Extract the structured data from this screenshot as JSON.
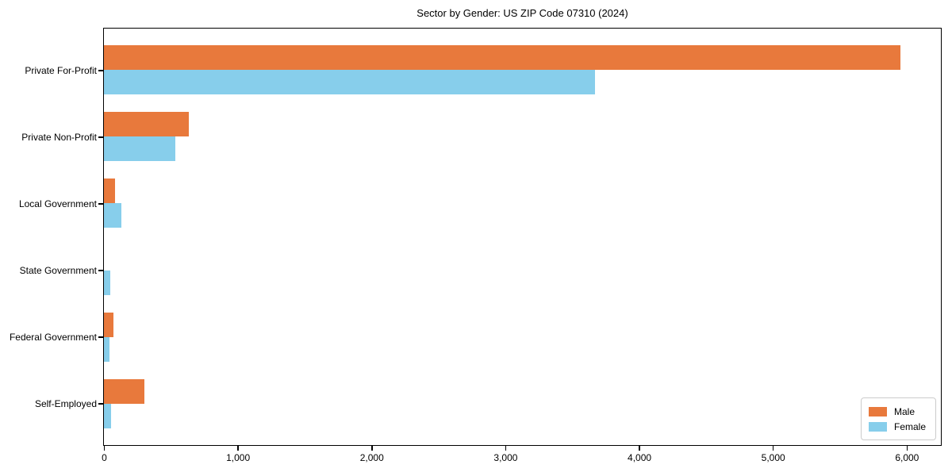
{
  "chart_data": {
    "type": "bar",
    "orientation": "horizontal",
    "title": "Sector by Gender: US ZIP Code 07310 (2024)",
    "categories": [
      "Private For-Profit",
      "Private Non-Profit",
      "Local Government",
      "State Government",
      "Federal Government",
      "Self-Employed"
    ],
    "series": [
      {
        "name": "Male",
        "color": "#e8793c",
        "values": [
          5950,
          635,
          85,
          0,
          70,
          305
        ]
      },
      {
        "name": "Female",
        "color": "#87ceeb",
        "values": [
          3670,
          535,
          130,
          45,
          40,
          55
        ]
      }
    ],
    "xlabel": "",
    "ylabel": "",
    "xlim": [
      0,
      6250
    ],
    "xticks": [
      0,
      1000,
      2000,
      3000,
      4000,
      5000,
      6000
    ],
    "xtick_labels": [
      "0",
      "1,000",
      "2,000",
      "3,000",
      "4,000",
      "5,000",
      "6,000"
    ],
    "grid": false,
    "legend": {
      "position": "lower right",
      "entries": [
        {
          "label": "Male",
          "color": "#e8793c"
        },
        {
          "label": "Female",
          "color": "#87ceeb"
        }
      ]
    }
  }
}
